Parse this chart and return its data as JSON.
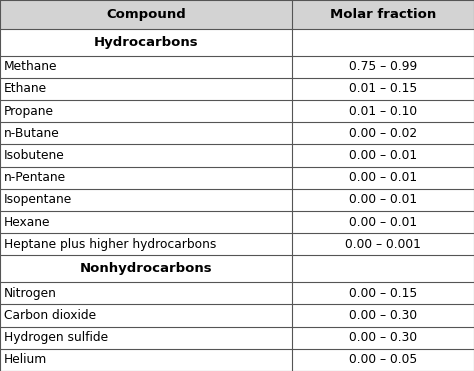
{
  "header": [
    "Compound",
    "Molar fraction"
  ],
  "section1_label": "Hydrocarbons",
  "section2_label": "Nonhydrocarbons",
  "hydrocarbons": [
    [
      "Methane",
      "0.75 – 0.99"
    ],
    [
      "Ethane",
      "0.01 – 0.15"
    ],
    [
      "Propane",
      "0.01 – 0.10"
    ],
    [
      "n-Butane",
      "0.00 – 0.02"
    ],
    [
      "Isobutene",
      "0.00 – 0.01"
    ],
    [
      "n-Pentane",
      "0.00 – 0.01"
    ],
    [
      "Isopentane",
      "0.00 – 0.01"
    ],
    [
      "Hexane",
      "0.00 – 0.01"
    ],
    [
      "Heptane plus higher hydrocarbons",
      "0.00 – 0.001"
    ]
  ],
  "nonhydrocarbons": [
    [
      "Nitrogen",
      "0.00 – 0.15"
    ],
    [
      "Carbon dioxide",
      "0.00 – 0.30"
    ],
    [
      "Hydrogen sulfide",
      "0.00 – 0.30"
    ],
    [
      "Helium",
      "0.00 – 0.05"
    ]
  ],
  "header_bg": "#d3d3d3",
  "section_bg": "#ffffff",
  "row_bg": "#ffffff",
  "header_font_size": 9.5,
  "section_font_size": 9.5,
  "row_font_size": 8.8,
  "col_split": 0.615,
  "border_color": "#555555",
  "text_color": "#000000",
  "fig_width": 4.74,
  "fig_height": 3.71,
  "dpi": 100
}
